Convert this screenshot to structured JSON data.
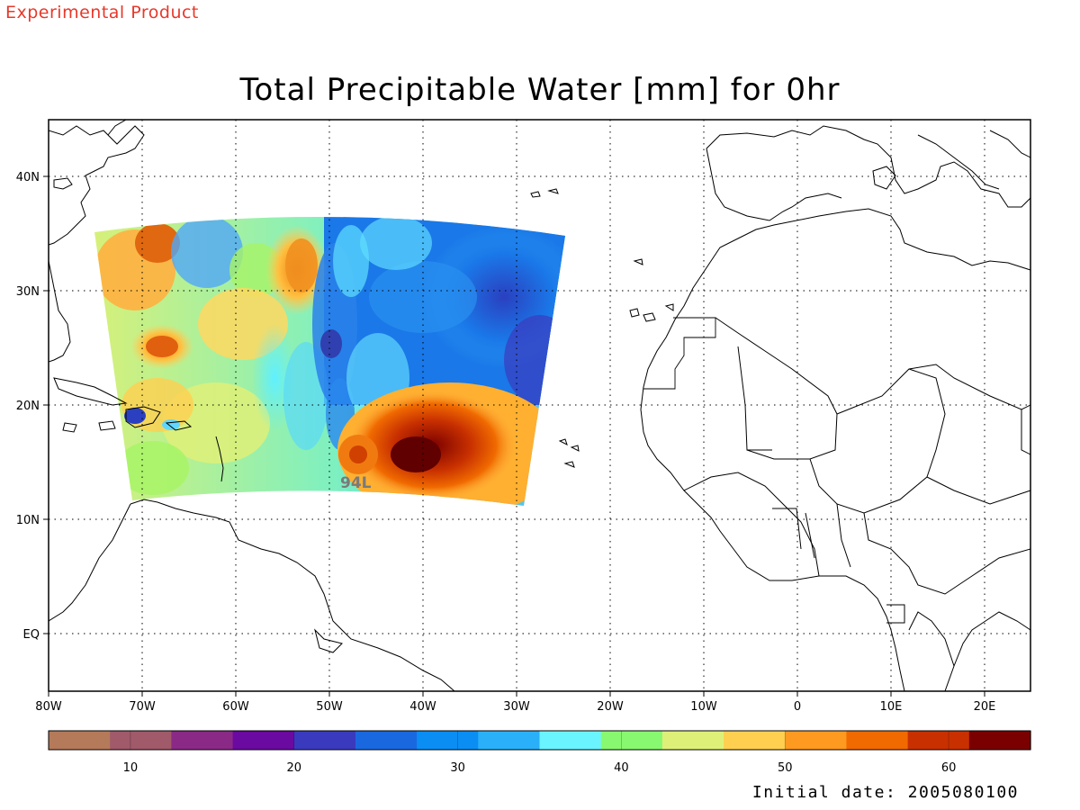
{
  "header": {
    "product_label": "Experimental Product",
    "title": "Total Precipitable Water [mm] for 0hr"
  },
  "map": {
    "lon_ticks": [
      "80W",
      "70W",
      "60W",
      "50W",
      "40W",
      "30W",
      "20W",
      "10W",
      "0",
      "10E",
      "20E"
    ],
    "lat_ticks": [
      "40N",
      "30N",
      "20N",
      "10N",
      "EQ"
    ],
    "storm_label": "94L",
    "gridlines": true
  },
  "colorbar": {
    "min": 5,
    "max": 65,
    "ticks": [
      10,
      20,
      30,
      40,
      50,
      60
    ],
    "tick_labels": [
      "10",
      "20",
      "30",
      "40",
      "50",
      "60"
    ],
    "colors": [
      "#b47a5a",
      "#a05a6a",
      "#8a2a86",
      "#6a0aa0",
      "#3a3abf",
      "#1a68e0",
      "#0a8ef4",
      "#2ab0f8",
      "#6af4ff",
      "#88f870",
      "#dff078",
      "#ffd050",
      "#ff9a20",
      "#f06a00",
      "#c83000",
      "#7a0000"
    ]
  },
  "footer": {
    "initial_date": "Initial date: 2005080100"
  }
}
